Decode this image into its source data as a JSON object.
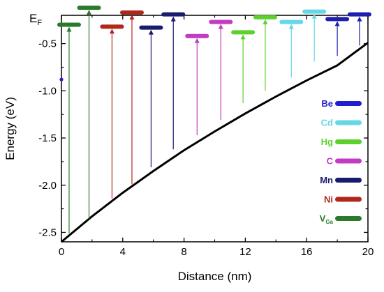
{
  "chart_data": {
    "type": "line",
    "title": "",
    "xlabel": "Distance (nm)",
    "ylabel": "Energy (eV)",
    "fermi_label": "E",
    "fermi_sub": "F",
    "xlim": [
      0,
      20
    ],
    "ylim": [
      -2.6,
      -0.2
    ],
    "x_ticks": [
      0,
      4,
      8,
      12,
      16,
      20
    ],
    "y_ticks": [
      -0.5,
      -1.0,
      -1.5,
      -2.0,
      -2.5
    ],
    "x_tick_labels": [
      "0",
      "4",
      "8",
      "12",
      "16",
      "20"
    ],
    "y_tick_labels": [
      "-0.5",
      "-1.0",
      "-1.5",
      "-2.0",
      "-2.5"
    ],
    "band_curve": {
      "color": "#000000",
      "x": [
        0,
        2,
        4,
        6,
        8,
        10,
        12,
        14,
        16,
        18,
        20
      ],
      "y": [
        -2.6,
        -2.33,
        -2.08,
        -1.85,
        -1.63,
        -1.43,
        -1.24,
        -1.06,
        -0.89,
        -0.73,
        -0.49
      ]
    },
    "side_marker": {
      "x": 0,
      "y": -0.88,
      "color": "#2222cc"
    },
    "transitions": [
      {
        "x": 0.5,
        "y_start": -2.51,
        "level": -0.3,
        "color": "#2b7a2b"
      },
      {
        "x": 1.8,
        "y_start": -2.36,
        "level": -0.12,
        "color": "#2b7a2b"
      },
      {
        "x": 3.3,
        "y_start": -2.14,
        "level": -0.32,
        "color": "#b0281c"
      },
      {
        "x": 4.6,
        "y_start": -1.99,
        "level": -0.17,
        "color": "#b0281c"
      },
      {
        "x": 5.85,
        "y_start": -1.81,
        "level": -0.33,
        "color": "#1a1a6e"
      },
      {
        "x": 7.3,
        "y_start": -1.62,
        "level": -0.19,
        "color": "#1a1a6e"
      },
      {
        "x": 8.85,
        "y_start": -1.47,
        "level": -0.42,
        "color": "#c23cc2"
      },
      {
        "x": 10.4,
        "y_start": -1.31,
        "level": -0.27,
        "color": "#c23cc2"
      },
      {
        "x": 11.85,
        "y_start": -1.13,
        "level": -0.38,
        "color": "#5dd02e"
      },
      {
        "x": 13.3,
        "y_start": -1.0,
        "level": -0.22,
        "color": "#5dd02e"
      },
      {
        "x": 15.0,
        "y_start": -0.86,
        "level": -0.27,
        "color": "#66d7e6"
      },
      {
        "x": 16.5,
        "y_start": -0.69,
        "level": -0.16,
        "color": "#66d7e6"
      },
      {
        "x": 18.0,
        "y_start": -0.63,
        "level": -0.24,
        "color": "#1f1fae"
      },
      {
        "x": 19.45,
        "y_start": -0.52,
        "level": -0.19,
        "color": "#1f1fae"
      }
    ],
    "legend": {
      "placement": "right",
      "entries": [
        {
          "label": "Be",
          "color": "#1f1fd0"
        },
        {
          "label": "Cd",
          "color": "#66d7e6"
        },
        {
          "label": "Hg",
          "color": "#5dd02e"
        },
        {
          "label": "C",
          "color": "#c23cc2"
        },
        {
          "label": "Mn",
          "color": "#1a1a6e"
        },
        {
          "label": "Ni",
          "color": "#b0281c"
        },
        {
          "label": "V",
          "sub": "Ga",
          "color": "#2b7a2b"
        }
      ]
    }
  }
}
